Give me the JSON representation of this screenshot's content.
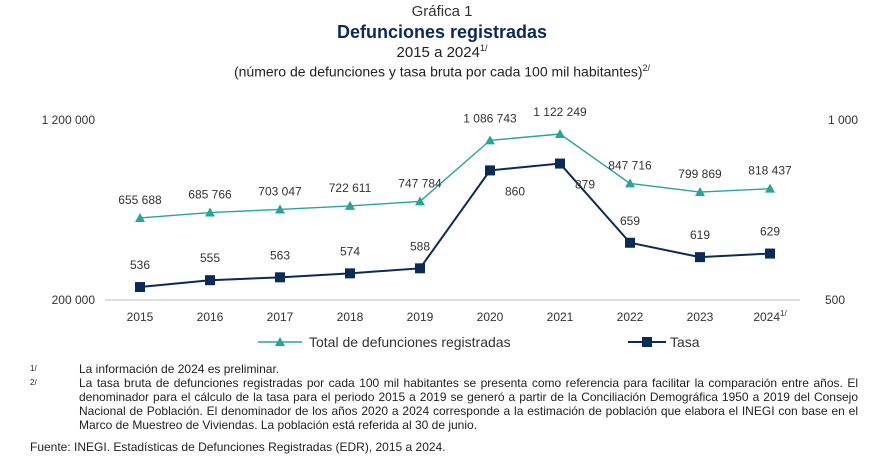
{
  "header": {
    "figure_number": "Gráfica 1",
    "title": "Defunciones registradas",
    "period": "2015 a 2024",
    "period_mark": "1/",
    "subtitle": "(número de defunciones y tasa bruta por cada 100 mil habitantes)",
    "subtitle_mark": "2/"
  },
  "chart_data": {
    "type": "line",
    "categories": [
      "2015",
      "2016",
      "2017",
      "2018",
      "2019",
      "2020",
      "2021",
      "2022",
      "2023",
      "2024"
    ],
    "last_category_mark": "1/",
    "series": [
      {
        "name": "Total de defunciones registradas",
        "axis": "left",
        "values": [
          655688,
          685766,
          703047,
          722611,
          747784,
          1086743,
          1122249,
          847716,
          799869,
          818437
        ],
        "labels": [
          "655 688",
          "685 766",
          "703 047",
          "722 611",
          "747 784",
          "1 086 743",
          "1 122 249",
          "847 716",
          "799 869",
          "818 437"
        ],
        "color": "#2aa39c",
        "marker": "triangle"
      },
      {
        "name": "Tasa",
        "axis": "right",
        "values": [
          536,
          555,
          563,
          574,
          588,
          860,
          879,
          659,
          619,
          629
        ],
        "labels": [
          "536",
          "555",
          "563",
          "574",
          "588",
          "860",
          "879",
          "659",
          "619",
          "629"
        ],
        "color": "#0b2a55",
        "marker": "square"
      }
    ],
    "left_axis": {
      "ylim": [
        200000,
        1200000
      ],
      "tick_labels": [
        "200 000",
        "1 200 000"
      ]
    },
    "right_axis": {
      "ylim": [
        500,
        1000
      ],
      "tick_labels": [
        "500",
        "1 000"
      ]
    },
    "grid": false,
    "legend_position": "bottom"
  },
  "notes": [
    {
      "mark": "1/",
      "text": "La información de 2024 es preliminar."
    },
    {
      "mark": "2/",
      "text": "La tasa bruta de defunciones registradas por cada 100 mil habitantes se presenta como referencia para facilitar la comparación entre años. El denominador para el cálculo de la tasa para el periodo 2015 a 2019 se generó a partir de la Conciliación Demográfica 1950 a 2019 del Consejo Nacional de Población. El denominador de los años 2020 a 2024 corresponde a la estimación de población que elabora el INEGI con base en el Marco de Muestreo de Viviendas. La población está referida al 30 de junio."
    }
  ],
  "source": "Fuente: INEGI. Estadísticas de Defunciones Registradas (EDR), 2015 a 2024."
}
